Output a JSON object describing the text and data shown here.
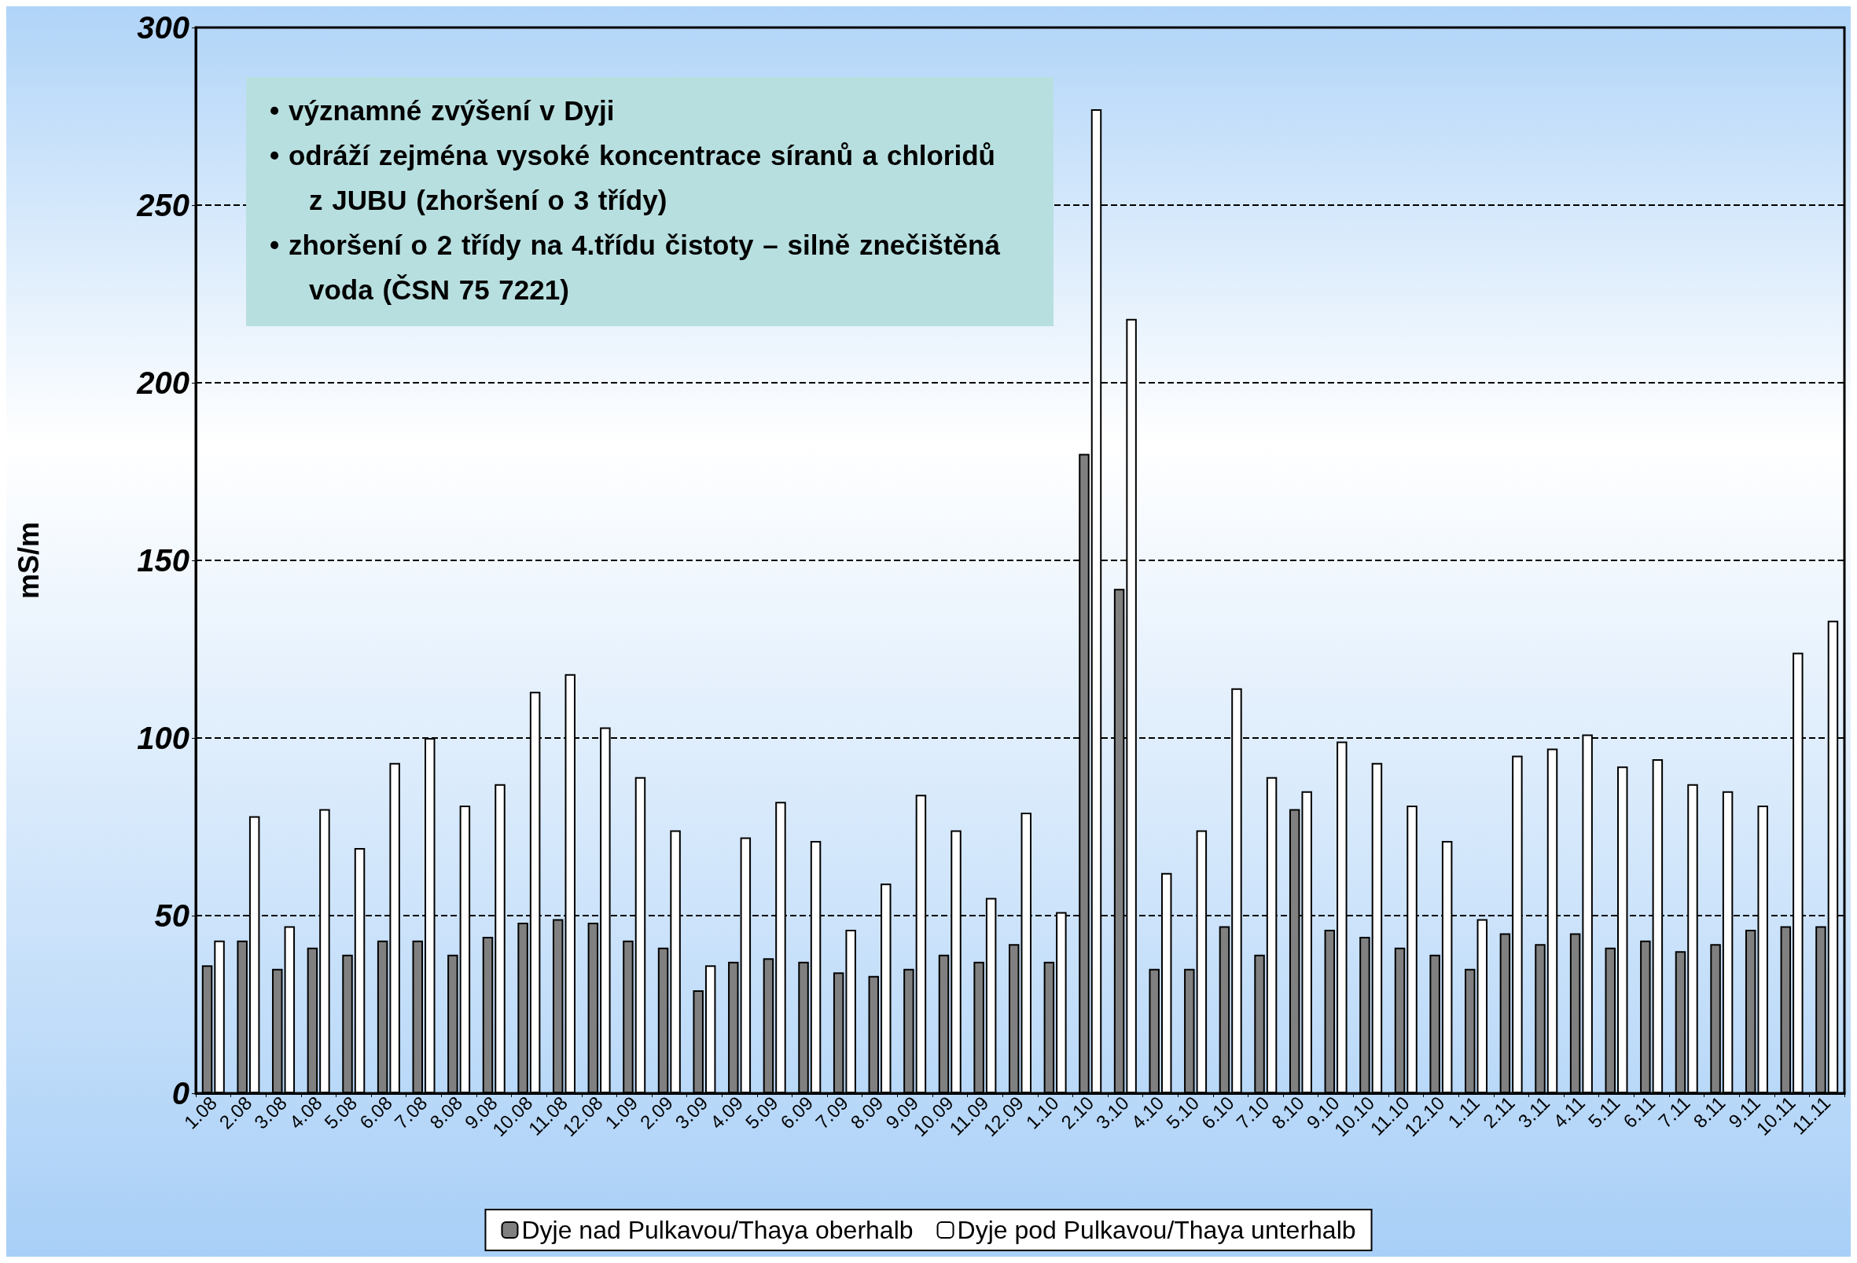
{
  "chart_data": {
    "type": "bar",
    "ylabel": "mS/m",
    "categories": [
      "1.08",
      "2.08",
      "3.08",
      "4.08",
      "5.08",
      "6.08",
      "7.08",
      "8.08",
      "9.08",
      "10.08",
      "11.08",
      "12.08",
      "1.09",
      "2.09",
      "3.09",
      "4.09",
      "5.09",
      "6.09",
      "7.09",
      "8.09",
      "9.09",
      "10.09",
      "11.09",
      "12.09",
      "1.10",
      "2.10",
      "3.10",
      "4.10",
      "5.10",
      "6.10",
      "7.10",
      "8.10",
      "9.10",
      "10.10",
      "11.10",
      "12.10",
      "1.11",
      "2.11",
      "3.11",
      "4.11",
      "5.11",
      "6.11",
      "7.11",
      "8.11",
      "9.11",
      "10.11",
      "11.11"
    ],
    "series": [
      {
        "name": "Dyje nad Pulkavou/Thaya oberhalb",
        "color": "#808080",
        "values": [
          36,
          43,
          35,
          41,
          39,
          43,
          43,
          39,
          44,
          48,
          49,
          48,
          43,
          41,
          29,
          37,
          38,
          37,
          34,
          33,
          35,
          39,
          37,
          42,
          37,
          180,
          142,
          35,
          35,
          47,
          39,
          80,
          46,
          44,
          41,
          39,
          35,
          45,
          42,
          45,
          41,
          43,
          40,
          42,
          46,
          47,
          47
        ]
      },
      {
        "name": "Dyje pod Pulkavou/Thaya unterhalb",
        "color": "#ffffff",
        "values": [
          43,
          78,
          47,
          80,
          69,
          93,
          100,
          81,
          87,
          113,
          118,
          103,
          89,
          74,
          36,
          72,
          82,
          71,
          46,
          59,
          84,
          74,
          55,
          79,
          51,
          277,
          218,
          62,
          74,
          114,
          89,
          85,
          99,
          93,
          81,
          71,
          49,
          95,
          97,
          101,
          92,
          94,
          87,
          85,
          81,
          124,
          133
        ]
      }
    ],
    "ylim": [
      0,
      300
    ],
    "yticks": [
      0,
      50,
      100,
      150,
      200,
      250,
      300
    ],
    "grid": "y",
    "legend": "bottom",
    "annotations": [
      "• významné zvýšení v Dyji",
      "• odráží zejména vysoké koncentrace síranů a chloridů z JUBU (zhoršení o 3 třídy)",
      "• zhoršení o 2 třídy na 4.třídu čistoty – silně znečištěná voda (ČSN 75 7221)"
    ]
  }
}
